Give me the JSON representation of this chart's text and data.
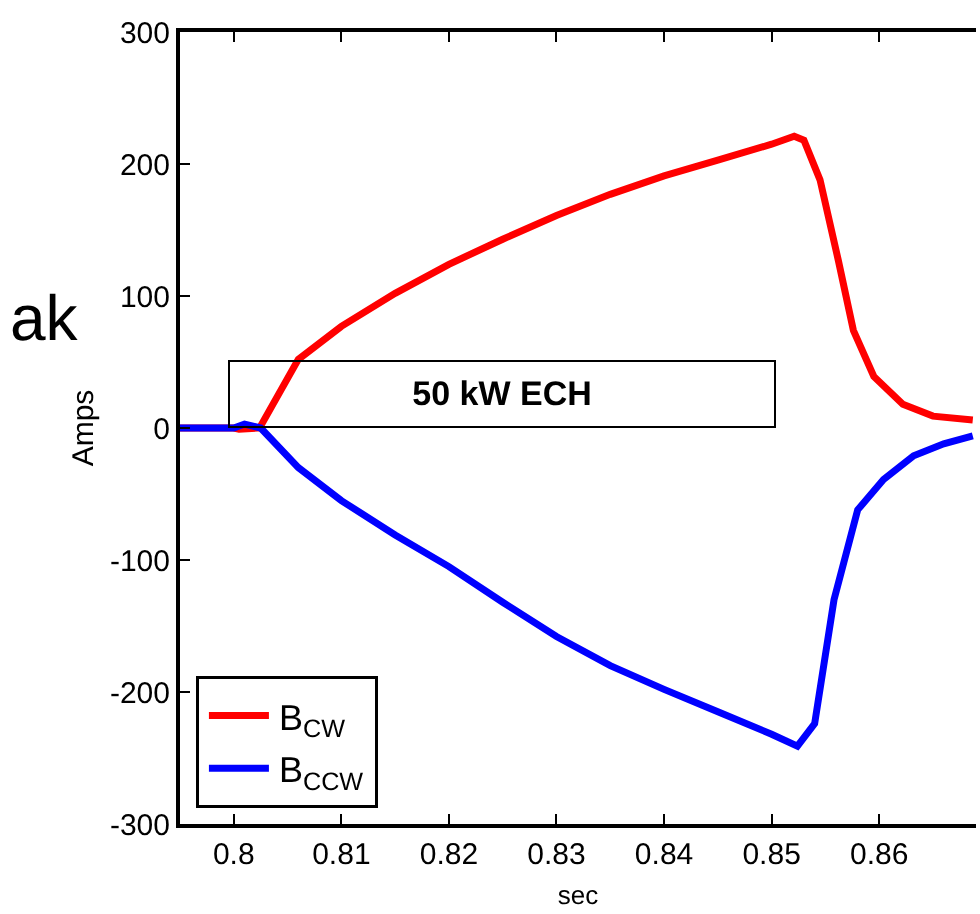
{
  "chart_data": {
    "type": "line",
    "xlabel": "sec",
    "ylabel": "Amps",
    "xlim": [
      0.795,
      0.869
    ],
    "xticks": [
      0.8,
      0.81,
      0.82,
      0.83,
      0.84,
      0.85,
      0.86
    ],
    "ylim": [
      -300,
      300
    ],
    "yticks": [
      -300,
      -200,
      -100,
      0,
      100,
      200,
      300
    ],
    "legend": "bottom left",
    "marker": "none",
    "line_style": "solid",
    "annotations": [
      "50 kW ECH",
      "ak"
    ],
    "series": [
      {
        "name": "B$_{CW}$",
        "color": "#ff0000",
        "x": [
          0.795,
          0.8,
          0.8005,
          0.8024,
          0.806,
          0.81,
          0.815,
          0.82,
          0.825,
          0.83,
          0.835,
          0.84,
          0.845,
          0.85,
          0.8521,
          0.853,
          0.8545,
          0.8562,
          0.8576,
          0.8595,
          0.8622,
          0.865,
          0.8687
        ],
        "values": [
          0,
          0,
          -1,
          0,
          52,
          77,
          102,
          124,
          143,
          161,
          177,
          191,
          203,
          215,
          221,
          218,
          188,
          127,
          74,
          39,
          18,
          9,
          6
        ]
      },
      {
        "name": "B$_{CCW}$",
        "color": "#0000ff",
        "x": [
          0.795,
          0.8,
          0.801,
          0.8025,
          0.806,
          0.81,
          0.815,
          0.82,
          0.825,
          0.83,
          0.835,
          0.84,
          0.845,
          0.85,
          0.8524,
          0.854,
          0.8558,
          0.858,
          0.8604,
          0.8632,
          0.866,
          0.8687
        ],
        "values": [
          0,
          0,
          3,
          0,
          -30,
          -55,
          -81,
          -105,
          -132,
          -158,
          -180,
          -198,
          -215,
          -232,
          -241,
          -224,
          -130,
          -62,
          -39,
          -21,
          -12,
          -6
        ]
      }
    ]
  }
}
